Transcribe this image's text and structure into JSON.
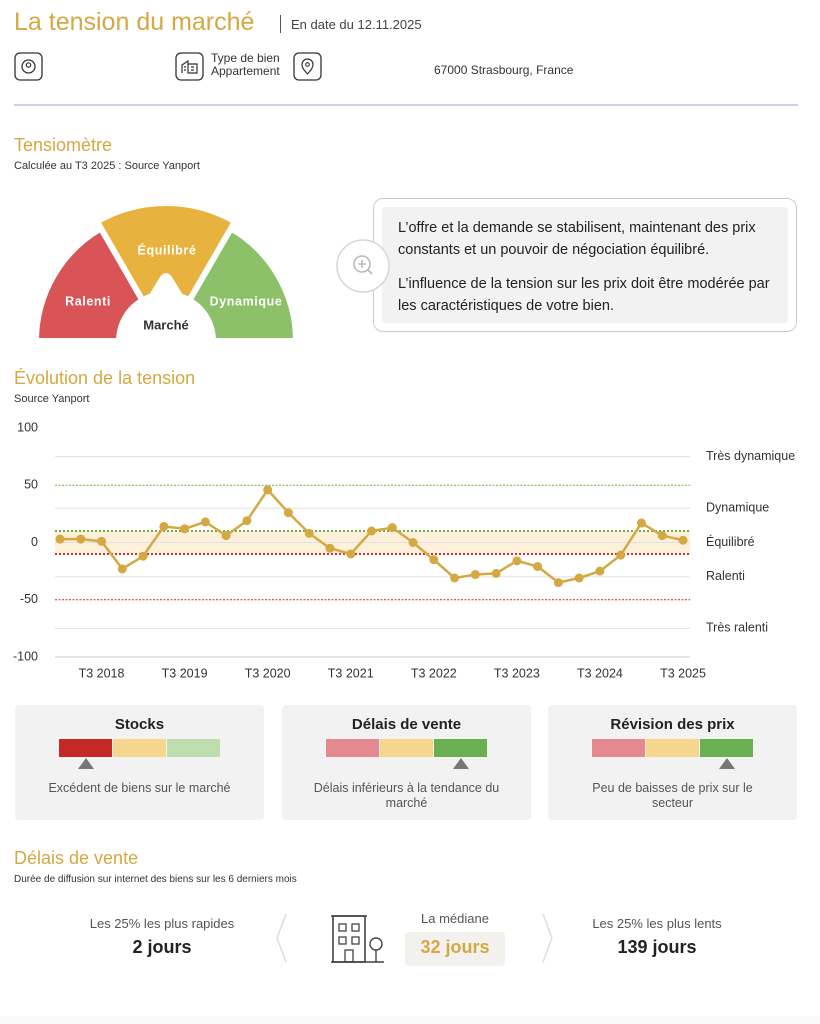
{
  "header": {
    "title": "La tension du marché",
    "date": "En date du 12.11.2025",
    "property_type_label": "Type de bien",
    "property_type": "Appartement",
    "address": "67000 Strasbourg, France"
  },
  "tensiometre": {
    "title": "Tensiomètre",
    "subtitle": "Calculée au T3 2025 : Source Yanport",
    "gauge": {
      "segments": [
        {
          "label": "Ralenti",
          "color": "#d85457"
        },
        {
          "label": "Équilibré",
          "color": "#e8b23e"
        },
        {
          "label": "Dynamique",
          "color": "#8cc16a"
        }
      ],
      "center_label": "Marché"
    },
    "info": [
      "L’offre et la demande se stabilisent, maintenant des prix constants et un pouvoir de négociation équilibré.",
      "L’influence de la tension sur les prix doit être modérée par les caractéristiques de votre bien."
    ]
  },
  "evolution": {
    "title": "Évolution de la tension",
    "subtitle": "Source Yanport"
  },
  "chart_data": {
    "type": "line",
    "color": "#d4a843",
    "categories": [
      null,
      null,
      "T3 2018",
      null,
      null,
      null,
      "T3 2019",
      null,
      null,
      null,
      "T3 2020",
      null,
      null,
      null,
      "T3 2021",
      null,
      null,
      null,
      "T3 2022",
      null,
      null,
      null,
      "T3 2023",
      null,
      null,
      null,
      "T3 2024",
      null,
      null,
      null,
      "T3 2025"
    ],
    "values": [
      3,
      3,
      1,
      -23,
      -12,
      14,
      12,
      18,
      6,
      19,
      46,
      26,
      8,
      -5,
      -10,
      10,
      13,
      0,
      -15,
      -31,
      -28,
      -27,
      -16,
      -21,
      -35,
      -31,
      -25,
      -11,
      17,
      6,
      2
    ],
    "ylim": [
      -100,
      100
    ],
    "yticks": [
      100,
      50,
      0,
      -50,
      -100
    ],
    "grid": true,
    "band": {
      "from": -10,
      "to": 10,
      "color": "#fdf1dc"
    },
    "reference_lines": [
      {
        "value": 50,
        "color": "#6aaf3d",
        "style": "dashed"
      },
      {
        "value": 10,
        "color": "#6aaf3d",
        "style": "dotted"
      },
      {
        "value": -10,
        "color": "#d32f2f",
        "style": "dotted"
      },
      {
        "value": -50,
        "color": "#c62828",
        "style": "dashed"
      }
    ],
    "zones": [
      {
        "label": "Très dynamique",
        "value": 75
      },
      {
        "label": "Dynamique",
        "value": 30
      },
      {
        "label": "Équilibré",
        "value": 0
      },
      {
        "label": "Ralenti",
        "value": -30
      },
      {
        "label": "Très ralenti",
        "value": -75
      }
    ]
  },
  "indicators": [
    {
      "title": "Stocks",
      "colors": [
        "#c62828",
        "#f5d68e",
        "#bfddae"
      ],
      "active": 0,
      "description": "Excédent de biens sur le marché"
    },
    {
      "title": "Délais de vente",
      "colors": [
        "#e3898f",
        "#f5d68e",
        "#6aaf50"
      ],
      "active": 2,
      "description": "Délais inférieurs à la tendance du marché"
    },
    {
      "title": "Révision des prix",
      "colors": [
        "#e3898f",
        "#f5d68e",
        "#6aaf50"
      ],
      "active": 2,
      "description": "Peu de baisses de prix sur le secteur"
    }
  ],
  "sale_delays": {
    "title": "Délais de vente",
    "subtitle": "Durée de diffusion sur internet des biens sur les 6 derniers mois",
    "stats": [
      {
        "label": "Les 25% les plus rapides",
        "value": "2 jours"
      },
      {
        "label": "La médiane",
        "value": "32 jours"
      },
      {
        "label": "Les 25% les plus lents",
        "value": "139 jours"
      }
    ]
  }
}
